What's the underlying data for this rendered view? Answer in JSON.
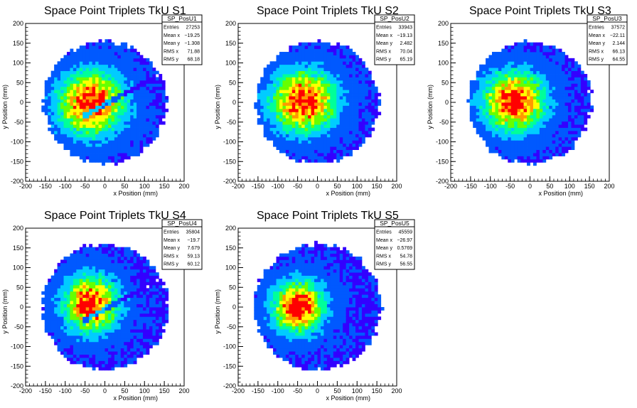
{
  "chart_data": [
    {
      "type": "heatmap",
      "title": "Space Point Triplets TkU S1",
      "xlabel": "x Position (mm)",
      "ylabel": "y Position (mm)",
      "xlim": [
        -200,
        200
      ],
      "ylim": [
        -200,
        200
      ],
      "x_ticks": [
        -200,
        -150,
        -100,
        -50,
        0,
        50,
        100,
        150,
        200
      ],
      "y_ticks": [
        -200,
        -150,
        -100,
        -50,
        0,
        50,
        100,
        150,
        200
      ],
      "stats": {
        "name": "SP_PosU1",
        "rows": [
          {
            "label": "Entries",
            "value": "27253"
          },
          {
            "label": "Mean x",
            "value": "−19.25"
          },
          {
            "label": "Mean y",
            "value": "−1.308"
          },
          {
            "label": "RMS x",
            "value": "71.88"
          },
          {
            "label": "RMS y",
            "value": "68.18"
          }
        ]
      },
      "distribution": {
        "center_x": -19.25,
        "center_y": -1.308,
        "rms_x": 71.88,
        "rms_y": 68.18,
        "radius": 155,
        "diagonal_gap": true
      }
    },
    {
      "type": "heatmap",
      "title": "Space Point Triplets TkU S2",
      "xlabel": "x Position (mm)",
      "ylabel": "y Position (mm)",
      "xlim": [
        -200,
        200
      ],
      "ylim": [
        -200,
        200
      ],
      "x_ticks": [
        -200,
        -150,
        -100,
        -50,
        0,
        50,
        100,
        150,
        200
      ],
      "y_ticks": [
        -200,
        -150,
        -100,
        -50,
        0,
        50,
        100,
        150,
        200
      ],
      "stats": {
        "name": "SP_PosU2",
        "rows": [
          {
            "label": "Entries",
            "value": "33943"
          },
          {
            "label": "Mean x",
            "value": "−19.13"
          },
          {
            "label": "Mean y",
            "value": "2.482"
          },
          {
            "label": "RMS x",
            "value": "70.04"
          },
          {
            "label": "RMS y",
            "value": "65.19"
          }
        ]
      },
      "distribution": {
        "center_x": -19.13,
        "center_y": 2.482,
        "rms_x": 70.04,
        "rms_y": 65.19,
        "radius": 155,
        "diagonal_gap": false
      }
    },
    {
      "type": "heatmap",
      "title": "Space Point Triplets TkU S3",
      "xlabel": "x Position (mm)",
      "ylabel": "y Position (mm)",
      "xlim": [
        -200,
        200
      ],
      "ylim": [
        -200,
        200
      ],
      "x_ticks": [
        -200,
        -150,
        -100,
        -50,
        0,
        50,
        100,
        150,
        200
      ],
      "y_ticks": [
        -200,
        -150,
        -100,
        -50,
        0,
        50,
        100,
        150,
        200
      ],
      "stats": {
        "name": "SP_PosU3",
        "rows": [
          {
            "label": "Entries",
            "value": "37572"
          },
          {
            "label": "Mean x",
            "value": "−22.11"
          },
          {
            "label": "Mean y",
            "value": "2.144"
          },
          {
            "label": "RMS x",
            "value": "66.13"
          },
          {
            "label": "RMS y",
            "value": "64.55"
          }
        ]
      },
      "distribution": {
        "center_x": -22.11,
        "center_y": 2.144,
        "rms_x": 66.13,
        "rms_y": 64.55,
        "radius": 155,
        "diagonal_gap": false
      }
    },
    {
      "type": "heatmap",
      "title": "Space Point Triplets TkU S4",
      "xlabel": "x Position (mm)",
      "ylabel": "y Position (mm)",
      "xlim": [
        -200,
        200
      ],
      "ylim": [
        -200,
        200
      ],
      "x_ticks": [
        -200,
        -150,
        -100,
        -50,
        0,
        50,
        100,
        150,
        200
      ],
      "y_ticks": [
        -200,
        -150,
        -100,
        -50,
        0,
        50,
        100,
        150,
        200
      ],
      "stats": {
        "name": "SP_PosU4",
        "rows": [
          {
            "label": "Entries",
            "value": "35804"
          },
          {
            "label": "Mean x",
            "value": "−19.7"
          },
          {
            "label": "Mean y",
            "value": "7.679"
          },
          {
            "label": "RMS x",
            "value": "59.13"
          },
          {
            "label": "RMS y",
            "value": "60.12"
          }
        ]
      },
      "distribution": {
        "center_x": -19.7,
        "center_y": 7.679,
        "rms_x": 59.13,
        "rms_y": 60.12,
        "radius": 160,
        "diagonal_gap": true
      }
    },
    {
      "type": "heatmap",
      "title": "Space Point Triplets TkU S5",
      "xlabel": "x Position (mm)",
      "ylabel": "y Position (mm)",
      "xlim": [
        -200,
        200
      ],
      "ylim": [
        -200,
        200
      ],
      "x_ticks": [
        -200,
        -150,
        -100,
        -50,
        0,
        50,
        100,
        150,
        200
      ],
      "y_ticks": [
        -200,
        -150,
        -100,
        -50,
        0,
        50,
        100,
        150,
        200
      ],
      "stats": {
        "name": "SP_PosU5",
        "rows": [
          {
            "label": "Entries",
            "value": "45559"
          },
          {
            "label": "Mean x",
            "value": "−26.97"
          },
          {
            "label": "Mean y",
            "value": "0.5769"
          },
          {
            "label": "RMS x",
            "value": "54.78"
          },
          {
            "label": "RMS y",
            "value": "56.55"
          }
        ]
      },
      "distribution": {
        "center_x": -26.97,
        "center_y": 0.5769,
        "rms_x": 54.78,
        "rms_y": 56.55,
        "radius": 160,
        "diagonal_gap": false
      }
    }
  ],
  "colors": {
    "background": "#ffffff",
    "axis": "#000000",
    "palette": [
      "#3300ff",
      "#0059ff",
      "#00ccff",
      "#00ff99",
      "#66ff00",
      "#ffff00",
      "#ff9900",
      "#ff0000"
    ]
  }
}
